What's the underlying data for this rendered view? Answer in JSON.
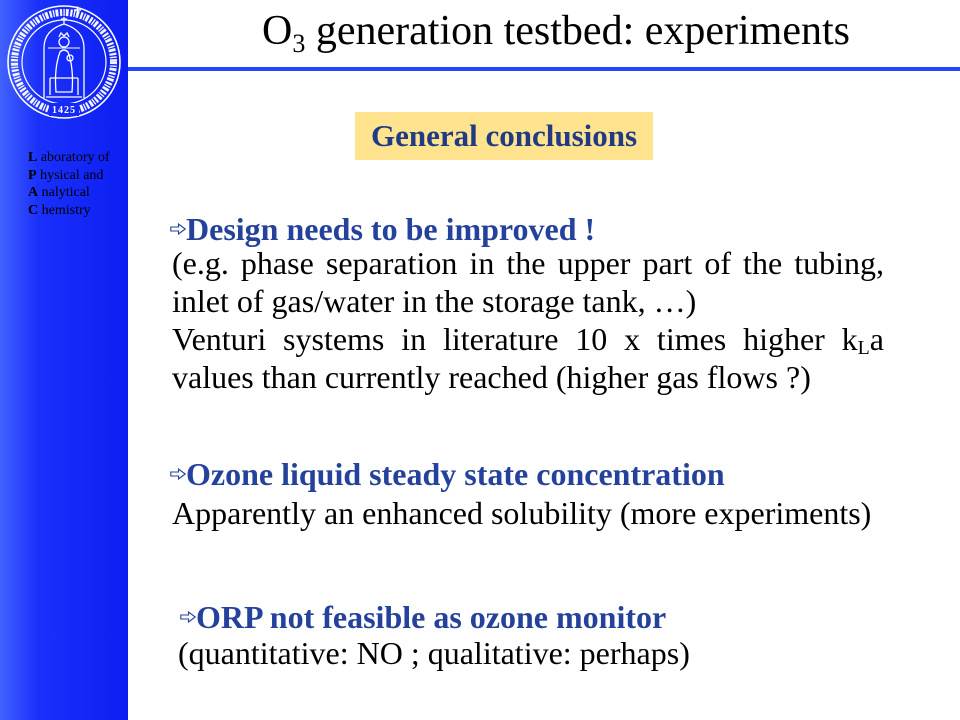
{
  "sidebar": {
    "seal": {
      "year": "1425"
    },
    "lab_name": [
      {
        "initial": "L",
        "rest": " aboratory of"
      },
      {
        "initial": "P",
        "rest": " hysical and"
      },
      {
        "initial": "A",
        "rest": " nalytical"
      },
      {
        "initial": "C",
        "rest": " hemistry"
      }
    ]
  },
  "title": {
    "pre": "O",
    "sub": "3",
    "post": " generation testbed: experiments"
  },
  "subtitle_box": {
    "label": "General conclusions"
  },
  "bullet_icon": "hollow-right-arrow-icon",
  "sections": [
    {
      "heading": "Design needs to be improved !",
      "lines": [
        "(e.g. phase separation in the upper part of the tubing,",
        "inlet of gas/water in the storage tank, …)",
        {
          "pre": "Venturi systems in literature 10 x times higher k",
          "sub": "L",
          "post": "a"
        },
        "values than currently reached (higher gas flows ?)"
      ]
    },
    {
      "heading": "Ozone liquid steady state concentration",
      "lines": [
        "Apparently an enhanced solubility (more experiments)"
      ]
    },
    {
      "heading": "ORP not feasible as ozone monitor",
      "lines": [
        "(quantitative: NO ; qualitative: perhaps)"
      ]
    }
  ],
  "colors": {
    "sidebar": "#1428f8",
    "title_rule": "#2645ff",
    "heading_text": "#24419b",
    "box_fill": "#ffe38f",
    "box_text": "#203a84"
  }
}
